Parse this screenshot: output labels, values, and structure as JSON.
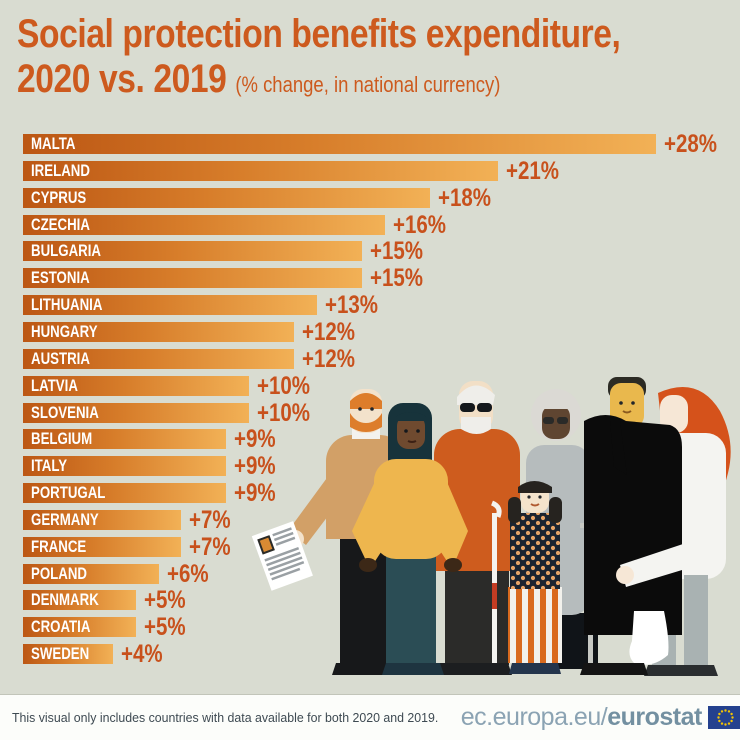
{
  "header": {
    "title_line1": "Social protection benefits expenditure,",
    "title_line2": "2020 vs. 2019",
    "subtitle": "(% change, in national currency)"
  },
  "chart_data": {
    "type": "bar",
    "orientation": "horizontal",
    "title": "Social protection benefits expenditure, 2020 vs. 2019",
    "xlabel": "% change, in national currency",
    "xlim": [
      0,
      28
    ],
    "grid": false,
    "legend": "none",
    "categories": [
      "MALTA",
      "IRELAND",
      "CYPRUS",
      "CZECHIA",
      "BULGARIA",
      "ESTONIA",
      "LITHUANIA",
      "HUNGARY",
      "AUSTRIA",
      "LATVIA",
      "SLOVENIA",
      "BELGIUM",
      "ITALY",
      "PORTUGAL",
      "GERMANY",
      "FRANCE",
      "POLAND",
      "DENMARK",
      "CROATIA",
      "SWEDEN"
    ],
    "values": [
      28,
      21,
      18,
      16,
      15,
      15,
      13,
      12,
      12,
      10,
      10,
      9,
      9,
      9,
      7,
      7,
      6,
      5,
      5,
      4
    ],
    "value_labels": [
      "+28%",
      "+21%",
      "+18%",
      "+16%",
      "+15%",
      "+15%",
      "+13%",
      "+12%",
      "+12%",
      "+10%",
      "+10%",
      "+9%",
      "+9%",
      "+9%",
      "+7%",
      "+7%",
      "+6%",
      "+5%",
      "+5%",
      "+4%"
    ],
    "bar_gradient_start": "#bc5714",
    "bar_gradient_end": "#f2b156",
    "value_label_color": "#c8511c",
    "bar_label_color": "#ffffff"
  },
  "footer": {
    "note": "This visual only includes countries with data available for both 2020 and 2019.",
    "url_prefix": "ec.europa.eu/",
    "url_bold": "eurostat"
  },
  "colors": {
    "background": "#d9dcd1",
    "title": "#cd5a1e",
    "footer_background": "#fcfdfa",
    "footer_text": "#3e4a52",
    "footer_link": "#8ba3b3",
    "eu_flag_blue": "#24418e",
    "eu_flag_stars": "#f4c400"
  },
  "illustration": {
    "description": "group of diverse people: job seeker holding CV, woman, blind man with white cane and bag, elderly woman with crutch, child in polka-dot dress, man in black coat with leg cast, nurse with red hair"
  }
}
